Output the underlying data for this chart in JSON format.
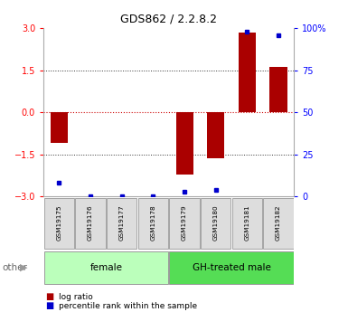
{
  "title": "GDS862 / 2.2.8.2",
  "samples": [
    "GSM19175",
    "GSM19176",
    "GSM19177",
    "GSM19178",
    "GSM19179",
    "GSM19180",
    "GSM19181",
    "GSM19182"
  ],
  "log_ratio": [
    -1.1,
    0.0,
    0.0,
    0.0,
    -2.2,
    -1.65,
    2.85,
    1.62
  ],
  "percentile_rank": [
    8,
    0,
    0,
    0,
    3,
    4,
    98,
    96
  ],
  "ylim_left": [
    -3,
    3
  ],
  "ylim_right": [
    0,
    100
  ],
  "yticks_left": [
    -3,
    -1.5,
    0,
    1.5,
    3
  ],
  "yticks_right": [
    0,
    25,
    50,
    75,
    100
  ],
  "yticklabels_right": [
    "0",
    "25",
    "50",
    "75",
    "100%"
  ],
  "bar_color": "#AA0000",
  "dot_color": "#0000CC",
  "hline_color_zero": "#CC0000",
  "hline_color_other": "#333333",
  "group_female": {
    "label": "female",
    "indices": [
      0,
      1,
      2,
      3
    ],
    "color": "#BBFFBB"
  },
  "group_male": {
    "label": "GH-treated male",
    "indices": [
      4,
      5,
      6,
      7
    ],
    "color": "#55DD55"
  },
  "other_label": "other",
  "legend_log_ratio": "log ratio",
  "legend_percentile": "percentile rank within the sample",
  "background_color": "#ffffff",
  "bar_width": 0.55,
  "dot_size": 18
}
